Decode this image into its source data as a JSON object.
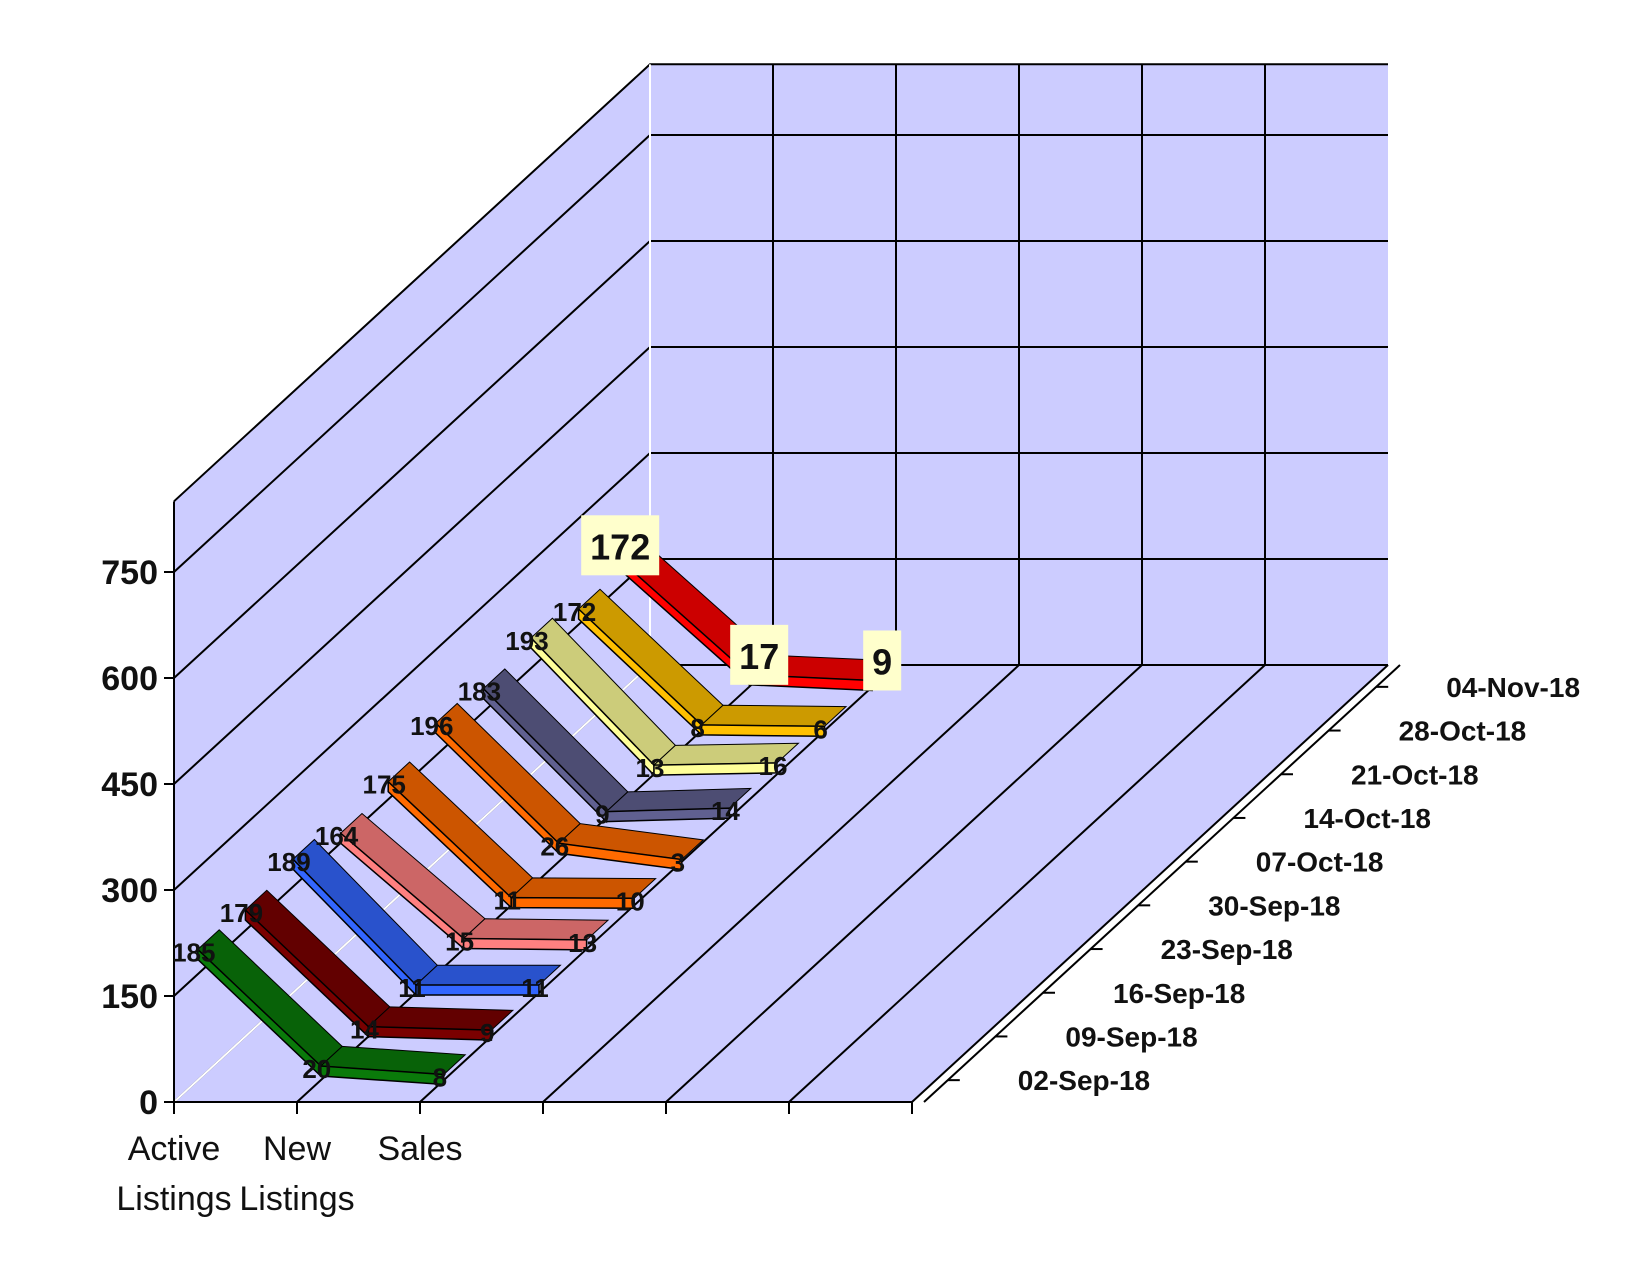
{
  "chart_data": {
    "type": "line",
    "subtype": "3d-line-depth",
    "categories": [
      "Active Listings",
      "New Listings",
      "Sales"
    ],
    "category_lines": [
      [
        "Active",
        "Listings"
      ],
      [
        "New",
        "Listings"
      ],
      [
        "Sales",
        ""
      ]
    ],
    "ylim": [
      0,
      850
    ],
    "yticks": [
      0,
      150,
      300,
      450,
      600,
      750
    ],
    "grid": true,
    "series": [
      {
        "name": "02-Sep-18",
        "values": [
          185,
          20,
          8
        ],
        "color": "#0a7a0a"
      },
      {
        "name": "09-Sep-18",
        "values": [
          179,
          14,
          9
        ],
        "color": "#7a0000"
      },
      {
        "name": "16-Sep-18",
        "values": [
          189,
          11,
          11
        ],
        "color": "#3366ff"
      },
      {
        "name": "23-Sep-18",
        "values": [
          164,
          15,
          13
        ],
        "color": "#ff8080"
      },
      {
        "name": "30-Sep-18",
        "values": [
          175,
          11,
          10
        ],
        "color": "#ff6a00"
      },
      {
        "name": "07-Oct-18",
        "values": [
          196,
          26,
          3
        ],
        "color": "#ff6a00"
      },
      {
        "name": "14-Oct-18",
        "values": [
          183,
          9,
          14
        ],
        "color": "#606090"
      },
      {
        "name": "21-Oct-18",
        "values": [
          193,
          13,
          16
        ],
        "color": "#ffff99"
      },
      {
        "name": "28-Oct-18",
        "values": [
          172,
          8,
          6
        ],
        "color": "#ffc000"
      },
      {
        "name": "04-Nov-18",
        "values": [
          172,
          17,
          9
        ],
        "color": "#ff0000",
        "highlight": true
      }
    ],
    "colors": {
      "plane": "#ccccff",
      "highlight_label_bg": "#ffffcc",
      "grid": "#000000"
    }
  }
}
